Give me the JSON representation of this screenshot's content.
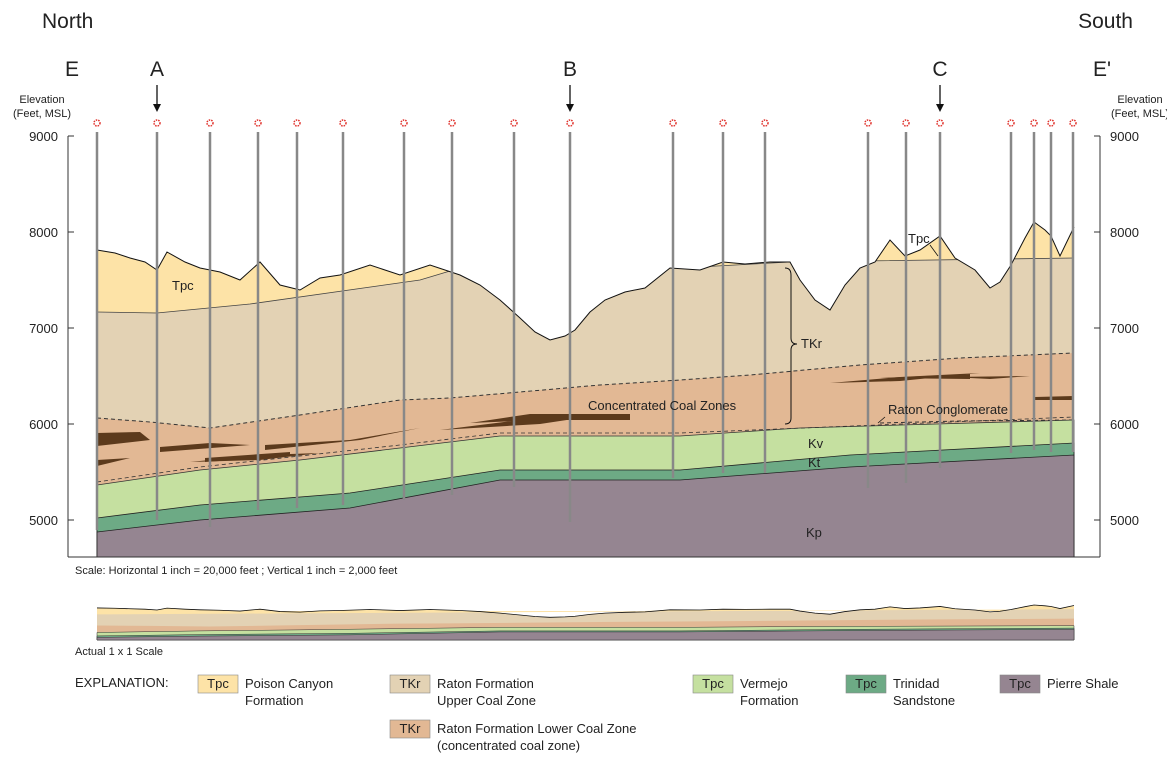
{
  "header": {
    "left": "North",
    "right": "South"
  },
  "section_labels": [
    "E",
    "A",
    "B",
    "C",
    "E'"
  ],
  "axis": {
    "left_title": [
      "Elevation",
      "(Feet, MSL)"
    ],
    "right_title": [
      "Elevation",
      "(Feet, MSL)"
    ],
    "ticks": [
      9000,
      8000,
      7000,
      6000,
      5000
    ]
  },
  "units": [
    "Tpc",
    "Tpc",
    "TKr",
    "Concentrated Coal Zones",
    "Raton Conglomerate",
    "Kv",
    "Kt",
    "Kp"
  ],
  "scale_note": "Scale:  Horizontal  1 inch = 20,000 feet ;  Vertical  1 inch = 2,000  feet",
  "small_label": "Actual 1 x 1 Scale",
  "legend": {
    "title": "EXPLANATION:",
    "items": [
      {
        "swatch": "Tpc",
        "label": [
          "Poison Canyon",
          "Formation"
        ]
      },
      {
        "swatch": "TKr",
        "label": [
          "Raton Formation",
          "Upper Coal Zone"
        ]
      },
      {
        "swatch": "Tpc",
        "label": [
          "Vermejo",
          "Formation"
        ]
      },
      {
        "swatch": "Tpc",
        "label": [
          "Trinidad",
          "Sandstone"
        ]
      },
      {
        "swatch": "Tpc",
        "label": [
          "Pierre Shale"
        ]
      },
      {
        "swatch": "TKr",
        "label": [
          "Raton Formation Lower Coal Zone",
          "(concentrated coal zone)"
        ]
      }
    ]
  }
}
